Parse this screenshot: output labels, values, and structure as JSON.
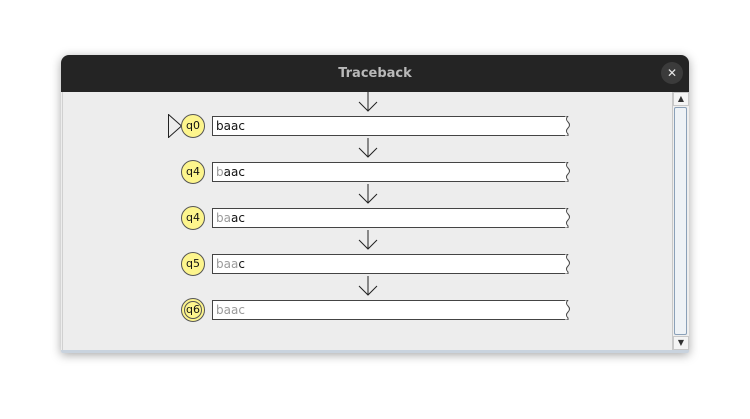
{
  "window": {
    "title": "Traceback",
    "close_icon": "close-icon"
  },
  "colors": {
    "state_fill": "#fdf58d",
    "titlebar": "#242424",
    "read_text": "#9a9a9a"
  },
  "steps": [
    {
      "state": "q0",
      "read": "",
      "unread": "baac",
      "initial": true,
      "final": false
    },
    {
      "state": "q4",
      "read": "b",
      "unread": "aac",
      "initial": false,
      "final": false
    },
    {
      "state": "q4",
      "read": "ba",
      "unread": "ac",
      "initial": false,
      "final": false
    },
    {
      "state": "q5",
      "read": "baa",
      "unread": "c",
      "initial": false,
      "final": false
    },
    {
      "state": "q6",
      "read": "baac",
      "unread": "",
      "initial": false,
      "final": true
    }
  ]
}
